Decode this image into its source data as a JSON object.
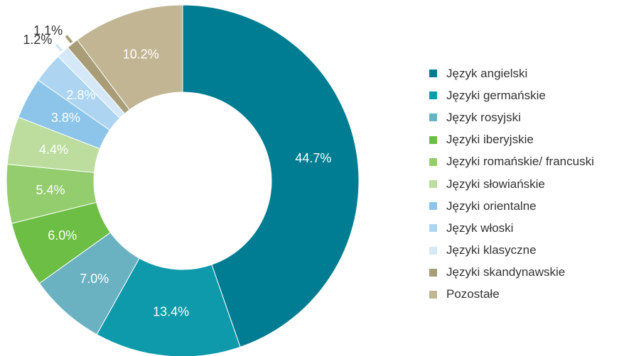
{
  "chart_data": {
    "type": "pie",
    "donut": true,
    "legend_position": "right",
    "slices": [
      {
        "label": "Język angielski",
        "value": 44.7,
        "value_label": "44.7%",
        "color": "#007D92",
        "label_color": "#ffffff"
      },
      {
        "label": "Języki germańskie",
        "value": 13.4,
        "value_label": "13.4%",
        "color": "#0E9AAA",
        "label_color": "#ffffff"
      },
      {
        "label": "Język rosyjski",
        "value": 7.0,
        "value_label": "7.0%",
        "color": "#6AB2C2",
        "label_color": "#ffffff"
      },
      {
        "label": "Języki iberyjskie",
        "value": 6.0,
        "value_label": "6.0%",
        "color": "#6DBE45",
        "label_color": "#ffffff"
      },
      {
        "label": "Języki romańskie/ francuski",
        "value": 5.4,
        "value_label": "5.4%",
        "color": "#93CD6E",
        "label_color": "#ffffff"
      },
      {
        "label": "Języki słowiańskie",
        "value": 4.4,
        "value_label": "4.4%",
        "color": "#BCDD9E",
        "label_color": "#ffffff"
      },
      {
        "label": "Języki orientalne",
        "value": 3.8,
        "value_label": "3.8%",
        "color": "#8DC5EA",
        "label_color": "#ffffff"
      },
      {
        "label": "Język włoski",
        "value": 2.8,
        "value_label": "2.8%",
        "color": "#ADD5F1",
        "label_color": "#ffffff"
      },
      {
        "label": "Języki klasyczne",
        "value": 1.2,
        "value_label": "1.2%",
        "color": "#D5E8F7",
        "label_color": "#333333"
      },
      {
        "label": "Języki skandynawskie",
        "value": 1.1,
        "value_label": "1.1%",
        "color": "#A89D76",
        "label_color": "#333333"
      },
      {
        "label": "Pozostałe",
        "value": 10.2,
        "value_label": "10.2%",
        "color": "#C2B594",
        "label_color": "#ffffff"
      }
    ]
  }
}
